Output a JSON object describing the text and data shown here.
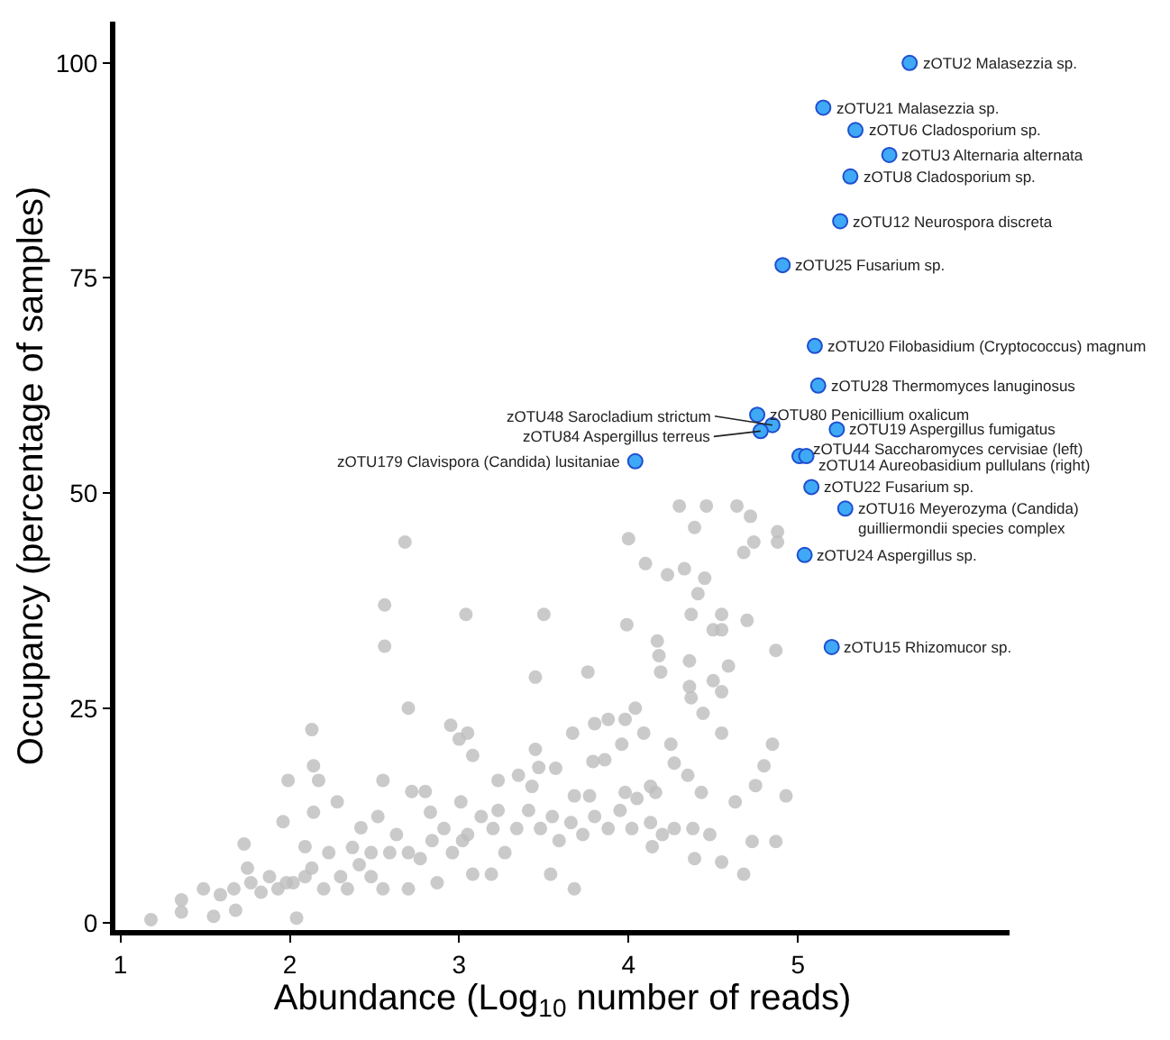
{
  "chart_data": {
    "type": "scatter",
    "xlabel": "Abundance (Log$_{10}$ number of reads)",
    "ylabel": "Occupancy (percentage of samples)",
    "xlim": [
      0.97,
      6.25
    ],
    "ylim": [
      -0.8,
      104.8
    ],
    "xticks": [
      1,
      2,
      3,
      4,
      5
    ],
    "yticks": [
      0,
      25,
      50,
      75,
      100
    ],
    "series": [
      {
        "color": "#bdbdbd",
        "x": [
          1.18,
          1.36,
          1.36,
          1.49,
          1.55,
          1.67,
          1.73,
          1.75,
          1.83,
          1.96,
          1.98,
          1.99,
          2.04,
          2.13,
          2.14,
          2.17,
          2.14,
          2.28,
          2.23,
          2.09,
          2.37,
          2.42,
          2.52,
          2.55,
          2.56,
          2.56,
          2.55,
          2.68,
          2.7,
          2.72,
          2.7,
          2.8,
          2.83,
          2.87,
          2.95,
          3.0,
          3.05,
          3.04,
          3.08,
          3.01,
          3.08,
          3.19,
          3.23,
          3.35,
          3.45,
          3.45,
          3.47,
          3.5,
          3.54,
          3.68,
          3.68,
          3.67,
          3.76,
          3.8,
          3.79,
          3.86,
          3.88,
          3.96,
          3.98,
          3.99,
          4.0,
          4.04,
          4.09,
          4.1,
          4.17,
          4.18,
          4.19,
          4.23,
          4.25,
          4.27,
          4.3,
          4.33,
          4.35,
          4.36,
          4.36,
          4.37,
          4.37,
          4.39,
          4.41,
          4.44,
          4.45,
          4.46,
          4.5,
          4.5,
          4.55,
          4.55,
          4.55,
          4.55,
          4.59,
          4.63,
          4.64,
          4.68,
          4.7,
          4.72,
          4.74,
          4.75,
          4.73,
          4.68,
          4.8,
          4.85,
          4.87,
          4.88,
          4.88,
          4.87,
          4.93,
          1.77,
          1.88,
          1.93,
          2.02,
          2.13,
          2.2,
          2.3,
          2.34,
          2.41,
          2.48,
          2.59,
          2.63,
          2.7,
          2.77,
          2.84,
          2.91,
          2.96,
          3.05,
          3.13,
          3.2,
          3.27,
          3.34,
          3.41,
          3.48,
          3.55,
          3.59,
          3.66,
          3.73,
          3.8,
          3.88,
          3.95,
          4.02,
          4.05,
          4.13,
          4.16,
          4.14,
          4.2,
          4.27,
          4.38,
          4.39,
          4.48,
          4.55,
          4.43,
          1.59,
          1.68,
          2.09,
          2.48,
          3.02,
          3.23,
          3.43,
          3.57,
          3.77,
          3.98,
          4.13
        ],
        "values": [
          0.4,
          2.7,
          1.3,
          4.0,
          0.8,
          4.0,
          9.2,
          6.4,
          3.6,
          11.8,
          4.7,
          16.6,
          0.6,
          22.5,
          18.3,
          16.6,
          12.9,
          14.1,
          8.2,
          5.4,
          8.8,
          11.1,
          12.4,
          16.6,
          37.0,
          32.2,
          4.0,
          44.3,
          25.0,
          15.3,
          4.0,
          15.3,
          12.9,
          4.7,
          23.0,
          21.4,
          22.1,
          35.9,
          19.5,
          14.1,
          5.7,
          5.7,
          16.6,
          17.2,
          28.6,
          20.2,
          18.1,
          35.9,
          5.7,
          4.0,
          14.8,
          22.1,
          29.2,
          23.2,
          18.8,
          19.0,
          23.7,
          20.8,
          23.7,
          34.7,
          44.7,
          25.0,
          22.1,
          41.8,
          32.8,
          31.1,
          29.2,
          40.5,
          20.8,
          18.6,
          48.5,
          41.2,
          17.2,
          30.5,
          27.5,
          26.2,
          35.9,
          46.0,
          38.3,
          24.4,
          40.1,
          48.5,
          34.1,
          28.2,
          35.9,
          26.9,
          22.1,
          34.1,
          29.9,
          14.1,
          48.5,
          43.1,
          35.2,
          47.3,
          44.3,
          16.0,
          9.5,
          5.7,
          18.3,
          20.8,
          31.7,
          45.5,
          44.3,
          9.5,
          14.8,
          4.7,
          5.4,
          4.0,
          4.7,
          6.4,
          4.0,
          5.4,
          4.0,
          6.8,
          8.2,
          8.2,
          10.3,
          8.2,
          7.5,
          9.6,
          11.0,
          8.2,
          10.3,
          12.4,
          11.0,
          8.2,
          11.0,
          13.1,
          11.0,
          12.4,
          9.6,
          11.7,
          10.3,
          12.4,
          11.0,
          13.1,
          11.0,
          14.5,
          11.7,
          15.2,
          8.9,
          10.3,
          11.0,
          11.0,
          7.5,
          10.3,
          7.1,
          15.2,
          3.3,
          1.5,
          8.9,
          5.4,
          9.6,
          13.1,
          15.9,
          18.0,
          14.8,
          15.2,
          15.9
        ]
      },
      {
        "color": "#3fa9f5",
        "x": [
          5.66,
          5.15,
          5.34,
          5.54,
          5.31,
          5.25,
          4.91,
          5.1,
          5.12,
          4.76,
          4.85,
          4.78,
          5.23,
          5.01,
          5.05,
          4.04,
          5.08,
          5.28,
          5.04,
          5.2
        ],
        "values": [
          100,
          94.8,
          92.2,
          89.3,
          86.8,
          81.6,
          76.5,
          67.1,
          62.5,
          59.1,
          57.9,
          57.2,
          57.4,
          54.3,
          54.3,
          53.7,
          50.7,
          48.2,
          42.8,
          32.1
        ]
      }
    ],
    "annotations": [
      {
        "text": "zOTU2 Malasezzia sp.",
        "x": 5.66,
        "y": 100
      },
      {
        "text": "zOTU21 Malasezzia sp.",
        "x": 5.15,
        "y": 94.8
      },
      {
        "text": "zOTU6 Cladosporium sp.",
        "x": 5.34,
        "y": 92.2
      },
      {
        "text": "zOTU3 Alternaria alternata",
        "x": 5.54,
        "y": 89.3
      },
      {
        "text": "zOTU8 Cladosporium sp.",
        "x": 5.31,
        "y": 86.8
      },
      {
        "text": "zOTU12 Neurospora discreta",
        "x": 5.25,
        "y": 81.6
      },
      {
        "text": "zOTU25 Fusarium sp.",
        "x": 4.91,
        "y": 76.5
      },
      {
        "text": "zOTU20 Filobasidium (Cryptococcus) magnum",
        "x": 5.1,
        "y": 67.1
      },
      {
        "text": "zOTU28 Thermomyces lanuginosus",
        "x": 5.12,
        "y": 62.5
      },
      {
        "text": "zOTU80 Penicillium oxalicum",
        "x": 4.76,
        "y": 59.1
      },
      {
        "text": "zOTU48 Sarocladium strictum",
        "x": 4.85,
        "y": 57.9
      },
      {
        "text": "zOTU84 Aspergillus terreus",
        "x": 4.78,
        "y": 57.2
      },
      {
        "text": "zOTU19 Aspergillus fumigatus",
        "x": 5.23,
        "y": 57.4
      },
      {
        "text": "zOTU44 Saccharomyces cervisiae (left)",
        "x": 5.01,
        "y": 54.3
      },
      {
        "text": "zOTU14 Aureobasidium pullulans (right)",
        "x": 5.05,
        "y": 54.3
      },
      {
        "text": "zOTU179 Clavispora (Candida) lusitaniae",
        "x": 4.04,
        "y": 53.7
      },
      {
        "text": "zOTU22 Fusarium sp.",
        "x": 5.08,
        "y": 50.7
      },
      {
        "text": "zOTU16 Meyerozyma (Candida)\nguilliermondii species complex",
        "x": 5.28,
        "y": 48.2
      },
      {
        "text": "zOTU24 Aspergillus sp.",
        "x": 5.04,
        "y": 42.8
      },
      {
        "text": "zOTU15 Rhizomucor sp.",
        "x": 5.2,
        "y": 32.1
      }
    ]
  }
}
